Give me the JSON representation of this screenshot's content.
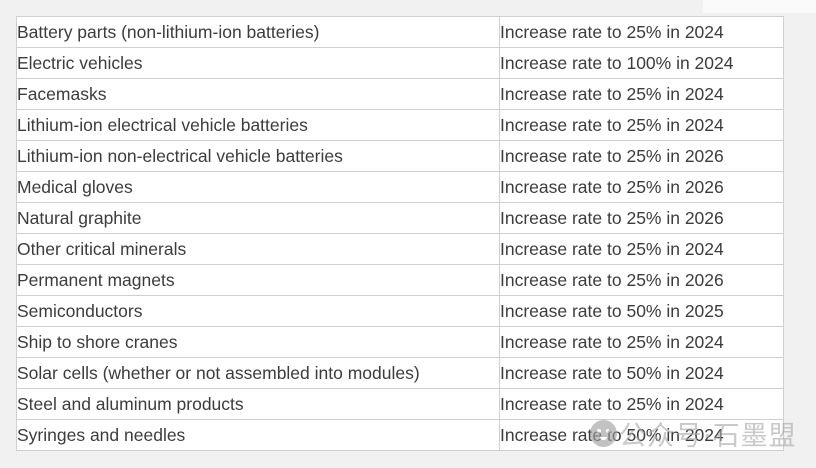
{
  "page": {
    "background": "#f1f1f2"
  },
  "chart_data": {
    "type": "table",
    "grid": true,
    "headers_visible": false,
    "rows": [
      [
        "Battery parts (non-lithium-ion batteries)",
        "Increase rate to 25% in 2024"
      ],
      [
        "Electric vehicles",
        "Increase rate to 100% in 2024"
      ],
      [
        "Facemasks",
        "Increase rate to 25% in 2024"
      ],
      [
        "Lithium-ion electrical vehicle batteries",
        "Increase rate to 25% in 2024"
      ],
      [
        "Lithium-ion non-electrical vehicle batteries",
        "Increase rate to 25% in 2026"
      ],
      [
        "Medical gloves",
        "Increase rate to 25% in 2026"
      ],
      [
        "Natural graphite",
        "Increase rate to 25% in 2026"
      ],
      [
        "Other critical minerals",
        "Increase rate to 25% in 2024"
      ],
      [
        "Permanent magnets",
        "Increase rate to 25% in 2026"
      ],
      [
        "Semiconductors",
        "Increase rate to 50% in 2025"
      ],
      [
        "Ship to shore cranes",
        "Increase rate to 25% in 2024"
      ],
      [
        "Solar cells (whether or not assembled into modules)",
        "Increase rate to 50% in 2024"
      ],
      [
        "Steel and aluminum products",
        "Increase rate to 25% in 2024"
      ],
      [
        "Syringes and needles",
        "Increase rate to 50% in 2024"
      ]
    ]
  },
  "table_style": {
    "border_color": "#cfcfcf",
    "cell_background": "#ffffff",
    "text_color": "#3c3c3c"
  },
  "watermark": {
    "icon": "wechat-icon",
    "text": "公众号·石墨盟",
    "color": "#a9a9a9"
  }
}
